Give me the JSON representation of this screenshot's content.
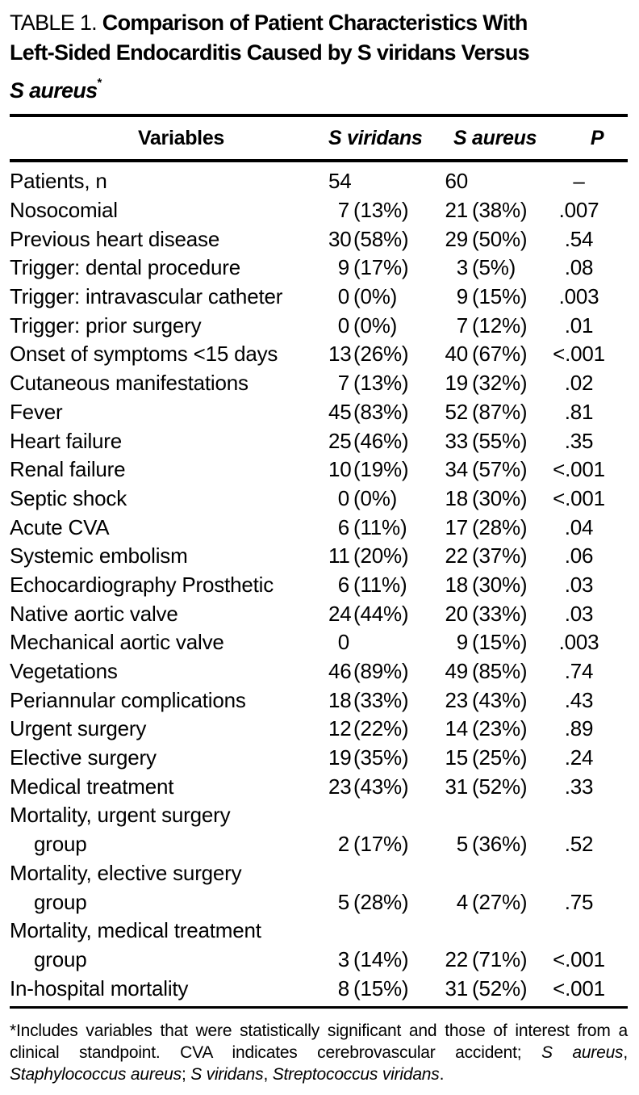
{
  "title": {
    "lines": [
      [
        {
          "t": "TABLE 1. ",
          "style": "regular"
        },
        {
          "t": "Comparison of Patient Characteristics With",
          "style": "bold"
        }
      ],
      [
        {
          "t": "Left-Sided Endocarditis Caused by S viridans Versus",
          "style": "bold"
        }
      ],
      [
        {
          "t": "S aureus",
          "style": "bold-italic"
        },
        {
          "t": "*",
          "style": "bold-sup"
        }
      ]
    ]
  },
  "header": {
    "variables": "Variables",
    "s_viridans": "S viridans",
    "s_aureus": "S aureus",
    "p": "P"
  },
  "rows": [
    {
      "label": "Patients, n",
      "sv": "54",
      "svp": "",
      "sa": "60",
      "sap": "",
      "p": "–"
    },
    {
      "label": "Nosocomial",
      "sv": "7",
      "svp": "(13%)",
      "sa": "21",
      "sap": "(38%)",
      "p": ".007"
    },
    {
      "label": "Previous heart disease",
      "sv": "30",
      "svp": "(58%)",
      "sa": "29",
      "sap": "(50%)",
      "p": ".54"
    },
    {
      "label": "Trigger: dental procedure",
      "sv": "9",
      "svp": "(17%)",
      "sa": "3",
      "sap": "(5%)",
      "p": ".08"
    },
    {
      "label": "Trigger: intravascular catheter",
      "sv": "0",
      "svp": "(0%)",
      "sa": "9",
      "sap": "(15%)",
      "p": ".003"
    },
    {
      "label": "Trigger: prior surgery",
      "sv": "0",
      "svp": "(0%)",
      "sa": "7",
      "sap": "(12%)",
      "p": ".01"
    },
    {
      "label": "Onset of symptoms <15 days",
      "sv": "13",
      "svp": "(26%)",
      "sa": "40",
      "sap": "(67%)",
      "p": "<.001"
    },
    {
      "label": "Cutaneous manifestations",
      "sv": "7",
      "svp": "(13%)",
      "sa": "19",
      "sap": "(32%)",
      "p": ".02"
    },
    {
      "label": "Fever",
      "sv": "45",
      "svp": "(83%)",
      "sa": "52",
      "sap": "(87%)",
      "p": ".81"
    },
    {
      "label": "Heart failure",
      "sv": "25",
      "svp": "(46%)",
      "sa": "33",
      "sap": "(55%)",
      "p": ".35"
    },
    {
      "label": "Renal failure",
      "sv": "10",
      "svp": "(19%)",
      "sa": "34",
      "sap": "(57%)",
      "p": "<.001"
    },
    {
      "label": "Septic shock",
      "sv": "0",
      "svp": "(0%)",
      "sa": "18",
      "sap": "(30%)",
      "p": "<.001"
    },
    {
      "label": "Acute CVA",
      "sv": "6",
      "svp": "(11%)",
      "sa": "17",
      "sap": "(28%)",
      "p": ".04"
    },
    {
      "label": "Systemic embolism",
      "sv": "11",
      "svp": "(20%)",
      "sa": "22",
      "sap": "(37%)",
      "p": ".06"
    },
    {
      "label": "Echocardiography Prosthetic",
      "sv": "6",
      "svp": "(11%)",
      "sa": "18",
      "sap": "(30%)",
      "p": ".03"
    },
    {
      "label": "Native aortic valve",
      "sv": "24",
      "svp": "(44%)",
      "sa": "20",
      "sap": "(33%)",
      "p": ".03"
    },
    {
      "label": "Mechanical aortic valve",
      "sv": "0",
      "svp": "",
      "sa": "9",
      "sap": "(15%)",
      "p": ".003"
    },
    {
      "label": "Vegetations",
      "sv": "46",
      "svp": "(89%)",
      "sa": "49",
      "sap": "(85%)",
      "p": ".74"
    },
    {
      "label": "Periannular complications",
      "sv": "18",
      "svp": "(33%)",
      "sa": "23",
      "sap": "(43%)",
      "p": ".43"
    },
    {
      "label": "Urgent surgery",
      "sv": "12",
      "svp": "(22%)",
      "sa": "14",
      "sap": "(23%)",
      "p": ".89"
    },
    {
      "label": "Elective surgery",
      "sv": "19",
      "svp": "(35%)",
      "sa": "15",
      "sap": "(25%)",
      "p": ".24"
    },
    {
      "label": "Medical treatment",
      "sv": "23",
      "svp": "(43%)",
      "sa": "31",
      "sap": "(52%)",
      "p": ".33"
    },
    {
      "label": "Mortality, urgent surgery",
      "labelOnly": true
    },
    {
      "label": "group",
      "indent": true,
      "sv": "2",
      "svp": "(17%)",
      "sa": "5",
      "sap": "(36%)",
      "p": ".52"
    },
    {
      "label": "Mortality, elective surgery",
      "labelOnly": true
    },
    {
      "label": "group",
      "indent": true,
      "sv": "5",
      "svp": "(28%)",
      "sa": "4",
      "sap": "(27%)",
      "p": ".75"
    },
    {
      "label": "Mortality, medical treatment",
      "labelOnly": true
    },
    {
      "label": "group",
      "indent": true,
      "sv": "3",
      "svp": "(14%)",
      "sa": "22",
      "sap": "(71%)",
      "p": "<.001"
    },
    {
      "label": "In-hospital mortality",
      "sv": "8",
      "svp": "(15%)",
      "sa": "31",
      "sap": "(52%)",
      "p": "<.001"
    }
  ],
  "footnote": {
    "segments": [
      {
        "t": "*Includes variables that were statistically significant and those of interest from a clinical standpoint. CVA indicates cerebrovascular accident; ",
        "i": false
      },
      {
        "t": "S aureus",
        "i": true
      },
      {
        "t": ", ",
        "i": false
      },
      {
        "t": "Staphylococcus aureus",
        "i": true
      },
      {
        "t": "; ",
        "i": false
      },
      {
        "t": "S viridans",
        "i": true
      },
      {
        "t": ", ",
        "i": false
      },
      {
        "t": "Streptococcus viridans",
        "i": true
      },
      {
        "t": ".",
        "i": false
      }
    ]
  },
  "colors": {
    "text": "#000000",
    "background": "#ffffff",
    "rule": "#000000"
  }
}
